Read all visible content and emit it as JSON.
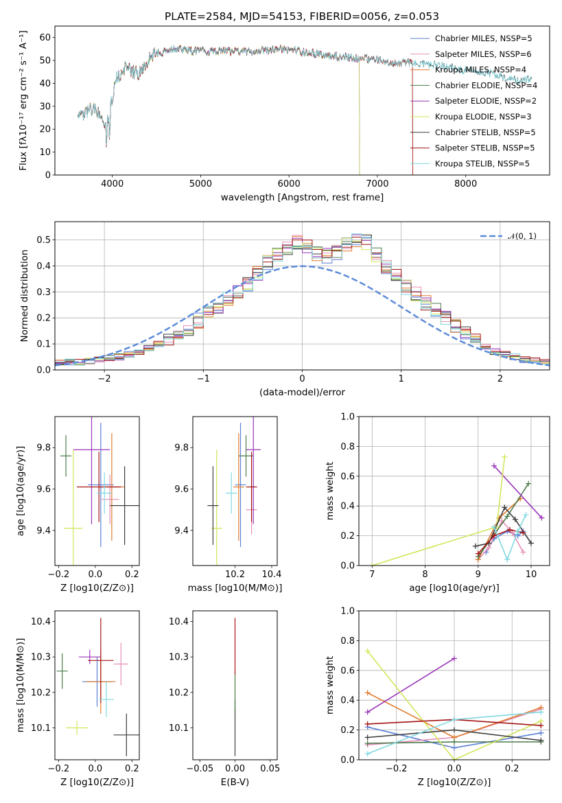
{
  "colors": {
    "Chabrier MILES": "#5b7fd4",
    "Salpeter MILES": "#e58fb5",
    "Kroupa MILES": "#e07a2d",
    "Chabrier ELODIE": "#4a7a4a",
    "Salpeter ELODIE": "#9a35b8",
    "Kroupa ELODIE": "#d2e65a",
    "Chabrier STELIB": "#3c3c3c",
    "Salpeter STELIB": "#a31212",
    "Kroupa STELIB": "#7fd8e0",
    "normal": "#5b8bd9"
  },
  "models": [
    {
      "lib": "Chabrier MILES",
      "nssp": "5"
    },
    {
      "lib": "Salpeter MILES",
      "nssp": "6"
    },
    {
      "lib": "Kroupa MILES",
      "nssp": "4"
    },
    {
      "lib": "Chabrier ELODIE",
      "nssp": "4"
    },
    {
      "lib": "Salpeter ELODIE",
      "nssp": "2"
    },
    {
      "lib": "Kroupa ELODIE",
      "nssp": "3"
    },
    {
      "lib": "Chabrier STELIB",
      "nssp": "5"
    },
    {
      "lib": "Salpeter STELIB",
      "nssp": "5"
    },
    {
      "lib": "Kroupa STELIB",
      "nssp": "5"
    }
  ],
  "chart_data": [
    {
      "type": "line",
      "title": "PLATE=2584, MJD=54153, FIBERID=0056, z=0.053",
      "xlabel": "wavelength [Angstrom, rest frame]",
      "ylabel": "Flux [fλ10⁻¹⁷ erg cm⁻² s⁻¹ A⁻¹]",
      "xlim": [
        3350,
        8950
      ],
      "ylim": [
        0,
        65
      ],
      "xticks": [
        4000,
        5000,
        6000,
        7000,
        8000
      ],
      "yticks": [
        0,
        10,
        20,
        30,
        40,
        50,
        60
      ],
      "legend": "top-right",
      "legend_labels": [
        "Chabrier MILES, NSSP=5",
        "Salpeter MILES, NSSP=6",
        "Kroupa MILES, NSSP=4",
        "Chabrier ELODIE, NSSP=4",
        "Salpeter ELODIE, NSSP=2",
        "Kroupa ELODIE, NSSP=3",
        "Chabrier STELIB, NSSP=5",
        "Salpeter STELIB, NSSP=5",
        "Kroupa STELIB, NSSP=5"
      ],
      "continuum": [
        [
          3600,
          28
        ],
        [
          3700,
          27
        ],
        [
          3800,
          30
        ],
        [
          3900,
          22
        ],
        [
          3950,
          25
        ],
        [
          4000,
          33
        ],
        [
          4050,
          42
        ],
        [
          4150,
          47
        ],
        [
          4300,
          44
        ],
        [
          4400,
          50
        ],
        [
          4500,
          53
        ],
        [
          4700,
          55
        ],
        [
          5000,
          54
        ],
        [
          5300,
          54
        ],
        [
          5600,
          54
        ],
        [
          5900,
          55
        ],
        [
          6100,
          54
        ],
        [
          6300,
          53
        ],
        [
          6500,
          52
        ],
        [
          6800,
          51
        ],
        [
          7000,
          50
        ],
        [
          7200,
          49
        ],
        [
          7400,
          49
        ],
        [
          7600,
          48
        ],
        [
          7800,
          47
        ],
        [
          8000,
          46
        ],
        [
          8200,
          45
        ],
        [
          8400,
          43
        ],
        [
          8600,
          41
        ],
        [
          8750,
          42
        ]
      ],
      "range_end": {
        "Chabrier MILES": 7400,
        "Salpeter MILES": 7400,
        "Kroupa MILES": 7400,
        "Chabrier ELODIE": 6800,
        "Salpeter ELODIE": 6800,
        "Kroupa ELODIE": 6800,
        "Chabrier STELIB": 8750,
        "Salpeter STELIB": 7400,
        "Kroupa STELIB": 8750
      }
    },
    {
      "type": "histogram",
      "xlabel": "(data-model)/error",
      "ylabel": "Normed distribution",
      "xlim": [
        -2.5,
        2.5
      ],
      "ylim": [
        0,
        0.57
      ],
      "xticks": [
        -2,
        -1,
        0,
        1,
        2
      ],
      "yticks": [
        0.0,
        0.1,
        0.2,
        0.3,
        0.4,
        0.5
      ],
      "grid": true,
      "legend": "top-right",
      "normal_label": "𝒩(0, 1)",
      "bin_width": 0.1,
      "bin_start": -2.5,
      "reference_values": [
        0.03,
        0.03,
        0.03,
        0.035,
        0.04,
        0.045,
        0.05,
        0.06,
        0.07,
        0.085,
        0.1,
        0.11,
        0.13,
        0.16,
        0.19,
        0.22,
        0.24,
        0.27,
        0.3,
        0.33,
        0.37,
        0.41,
        0.44,
        0.47,
        0.49,
        0.47,
        0.45,
        0.44,
        0.45,
        0.48,
        0.5,
        0.49,
        0.44,
        0.4,
        0.37,
        0.32,
        0.29,
        0.26,
        0.23,
        0.2,
        0.17,
        0.14,
        0.11,
        0.09,
        0.07,
        0.06,
        0.05,
        0.04,
        0.035,
        0.03
      ]
    },
    {
      "type": "scatter",
      "panel": "Z vs age",
      "xlabel": "Z [log10(Z/Z⊙)]",
      "ylabel": "age  [log10(age/yr)]",
      "xlim": [
        -0.22,
        0.24
      ],
      "ylim": [
        9.23,
        9.95
      ],
      "xticks": [
        -0.2,
        0.0,
        0.2
      ],
      "yticks": [
        9.4,
        9.6,
        9.8
      ],
      "points": [
        {
          "model": "Chabrier MILES",
          "x": 0.03,
          "y": 9.62,
          "xerr": 0.07,
          "yerr": 0.3
        },
        {
          "model": "Salpeter MILES",
          "x": 0.08,
          "y": 9.55,
          "xerr": 0.05,
          "yerr": 0.12
        },
        {
          "model": "Kroupa MILES",
          "x": 0.09,
          "y": 9.61,
          "xerr": 0.07,
          "yerr": 0.26
        },
        {
          "model": "Chabrier ELODIE",
          "x": -0.16,
          "y": 9.76,
          "xerr": 0.03,
          "yerr": 0.1
        },
        {
          "model": "Salpeter ELODIE",
          "x": -0.02,
          "y": 9.79,
          "xerr": 0.1,
          "yerr": 0.36
        },
        {
          "model": "Kroupa ELODIE",
          "x": -0.12,
          "y": 9.41,
          "xerr": 0.05,
          "yerr": 0.38
        },
        {
          "model": "Chabrier STELIB",
          "x": 0.16,
          "y": 9.52,
          "xerr": 0.08,
          "yerr": 0.19
        },
        {
          "model": "Salpeter STELIB",
          "x": 0.02,
          "y": 9.61,
          "xerr": 0.12,
          "yerr": 0.17
        },
        {
          "model": "Kroupa STELIB",
          "x": 0.05,
          "y": 9.58,
          "xerr": 0.04,
          "yerr": 0.1
        }
      ]
    },
    {
      "type": "scatter",
      "panel": "mass vs age",
      "xlabel": "mass [log10(M/M⊙)]",
      "ylabel": "",
      "xlim": [
        9.97,
        10.43
      ],
      "ylim": [
        9.23,
        9.95
      ],
      "xticks": [
        10.2,
        10.4
      ],
      "yticks": [
        9.4,
        9.6,
        9.8
      ],
      "points": [
        {
          "model": "Chabrier MILES",
          "x": 10.23,
          "y": 9.62,
          "xerr": 0.03,
          "yerr": 0.3
        },
        {
          "model": "Salpeter MILES",
          "x": 10.29,
          "y": 9.5,
          "xerr": 0.03,
          "yerr": 0.12
        },
        {
          "model": "Kroupa MILES",
          "x": 10.22,
          "y": 9.61,
          "xerr": 0.03,
          "yerr": 0.26
        },
        {
          "model": "Chabrier ELODIE",
          "x": 10.26,
          "y": 9.76,
          "xerr": 0.04,
          "yerr": 0.1
        },
        {
          "model": "Salpeter ELODIE",
          "x": 10.3,
          "y": 9.79,
          "xerr": 0.04,
          "yerr": 0.36
        },
        {
          "model": "Kroupa ELODIE",
          "x": 10.1,
          "y": 9.41,
          "xerr": 0.03,
          "yerr": 0.38
        },
        {
          "model": "Chabrier STELIB",
          "x": 10.08,
          "y": 9.52,
          "xerr": 0.03,
          "yerr": 0.19
        },
        {
          "model": "Salpeter STELIB",
          "x": 10.29,
          "y": 9.61,
          "xerr": 0.03,
          "yerr": 0.17
        },
        {
          "model": "Kroupa STELIB",
          "x": 10.18,
          "y": 9.58,
          "xerr": 0.03,
          "yerr": 0.1
        }
      ]
    },
    {
      "type": "line",
      "panel": "age vs mass weight",
      "xlabel": "age  [log10(age/yr)]",
      "ylabel": "mass weight",
      "xlim": [
        6.75,
        10.35
      ],
      "ylim": [
        0,
        1
      ],
      "xticks": [
        7,
        8,
        9,
        10
      ],
      "yticks": [
        0.0,
        0.2,
        0.4,
        0.6,
        0.8,
        1.0
      ],
      "grid": true,
      "series": [
        {
          "model": "Chabrier MILES",
          "points": [
            [
              9.15,
              0.09
            ],
            [
              9.3,
              0.18
            ],
            [
              9.55,
              0.23
            ],
            [
              9.75,
              0.2
            ],
            [
              9.85,
              0.23
            ]
          ]
        },
        {
          "model": "Salpeter MILES",
          "points": [
            [
              9.0,
              0.04
            ],
            [
              9.2,
              0.12
            ],
            [
              9.45,
              0.3
            ],
            [
              9.65,
              0.22
            ],
            [
              9.85,
              0.09
            ]
          ]
        },
        {
          "model": "Kroupa MILES",
          "points": [
            [
              9.0,
              0.04
            ],
            [
              9.4,
              0.32
            ],
            [
              9.8,
              0.45
            ]
          ]
        },
        {
          "model": "Chabrier ELODIE",
          "points": [
            [
              9.0,
              0.06
            ],
            [
              9.55,
              0.33
            ],
            [
              9.95,
              0.55
            ]
          ]
        },
        {
          "model": "Salpeter ELODIE",
          "points": [
            [
              9.3,
              0.67
            ],
            [
              10.2,
              0.32
            ]
          ]
        },
        {
          "model": "Kroupa ELODIE",
          "points": [
            [
              7.0,
              0.0
            ],
            [
              9.35,
              0.26
            ],
            [
              9.5,
              0.73
            ]
          ]
        },
        {
          "model": "Chabrier STELIB",
          "points": [
            [
              8.95,
              0.13
            ],
            [
              9.2,
              0.15
            ],
            [
              9.5,
              0.39
            ],
            [
              9.7,
              0.31
            ],
            [
              10.0,
              0.15
            ]
          ]
        },
        {
          "model": "Salpeter STELIB",
          "points": [
            [
              9.0,
              0.08
            ],
            [
              9.3,
              0.2
            ],
            [
              9.6,
              0.24
            ],
            [
              9.85,
              0.22
            ]
          ]
        },
        {
          "model": "Kroupa STELIB",
          "points": [
            [
              9.3,
              0.26
            ],
            [
              9.55,
              0.04
            ],
            [
              9.75,
              0.23
            ],
            [
              9.9,
              0.34
            ]
          ]
        }
      ]
    },
    {
      "type": "scatter",
      "panel": "Z vs mass",
      "xlabel": "Z [log10(Z/Z⊙)]",
      "ylabel": "mass [log10(M/M⊙)]",
      "xlim": [
        -0.22,
        0.24
      ],
      "ylim": [
        10.01,
        10.43
      ],
      "xticks": [
        -0.2,
        0.0,
        0.2
      ],
      "yticks": [
        10.1,
        10.2,
        10.3,
        10.4
      ],
      "points": [
        {
          "model": "Chabrier MILES",
          "x": 0.01,
          "y": 10.23,
          "xerr": 0.08,
          "yerr": 0.07
        },
        {
          "model": "Salpeter MILES",
          "x": 0.14,
          "y": 10.28,
          "xerr": 0.04,
          "yerr": 0.06
        },
        {
          "model": "Kroupa MILES",
          "x": 0.03,
          "y": 10.23,
          "xerr": 0.08,
          "yerr": 0.09
        },
        {
          "model": "Chabrier ELODIE",
          "x": -0.18,
          "y": 10.26,
          "xerr": 0.03,
          "yerr": 0.05
        },
        {
          "model": "Salpeter ELODIE",
          "x": -0.03,
          "y": 10.3,
          "xerr": 0.06,
          "yerr": 0.02
        },
        {
          "model": "Kroupa ELODIE",
          "x": -0.1,
          "y": 10.1,
          "xerr": 0.06,
          "yerr": 0.02
        },
        {
          "model": "Chabrier STELIB",
          "x": 0.17,
          "y": 10.08,
          "xerr": 0.07,
          "yerr": 0.06
        },
        {
          "model": "Salpeter STELIB",
          "x": 0.03,
          "y": 10.29,
          "xerr": 0.07,
          "yerr": 0.12
        },
        {
          "model": "Kroupa STELIB",
          "x": 0.06,
          "y": 10.18,
          "xerr": 0.04,
          "yerr": 0.05
        }
      ]
    },
    {
      "type": "scatter",
      "panel": "E(B-V) vs mass",
      "xlabel": "E(B-V)",
      "ylabel": "",
      "xlim": [
        -0.06,
        0.06
      ],
      "ylim": [
        10.01,
        10.43
      ],
      "xticks": [
        -0.05,
        0.0,
        0.05
      ],
      "yticks": [
        10.1,
        10.2,
        10.3,
        10.4
      ],
      "points": [
        {
          "model": "Kroupa ELODIE",
          "x": 0.0,
          "y": 10.2,
          "xerr": 0.0,
          "yerr": 0.07
        },
        {
          "model": "Chabrier STELIB",
          "x": 0.0,
          "y": 10.1,
          "xerr": 0.0,
          "yerr": 0.08
        },
        {
          "model": "Salpeter STELIB",
          "x": 0.0,
          "y": 10.33,
          "xerr": 0.0,
          "yerr": 0.08
        },
        {
          "model": "Chabrier ELODIE",
          "x": 0.0,
          "y": 10.2,
          "xerr": 0.0,
          "yerr": 0.05
        }
      ]
    },
    {
      "type": "line",
      "panel": "Z vs mass weight",
      "xlabel": "Z [log10(Z/Z⊙)]",
      "ylabel": "mass weight",
      "xlim": [
        -0.33,
        0.33
      ],
      "ylim": [
        0,
        1
      ],
      "xticks": [
        -0.2,
        0.0,
        0.2
      ],
      "yticks": [
        0.0,
        0.2,
        0.4,
        0.6,
        0.8,
        1.0
      ],
      "grid": true,
      "series": [
        {
          "model": "Chabrier MILES",
          "points": [
            [
              -0.3,
              0.22
            ],
            [
              0.0,
              0.08
            ],
            [
              0.3,
              0.18
            ]
          ]
        },
        {
          "model": "Salpeter MILES",
          "points": [
            [
              -0.3,
              0.1
            ],
            [
              0.0,
              0.15
            ],
            [
              0.3,
              0.34
            ]
          ]
        },
        {
          "model": "Kroupa MILES",
          "points": [
            [
              -0.3,
              0.45
            ],
            [
              0.0,
              0.15
            ],
            [
              0.3,
              0.35
            ]
          ]
        },
        {
          "model": "Chabrier ELODIE",
          "points": [
            [
              -0.3,
              0.11
            ],
            [
              0.0,
              0.12
            ],
            [
              0.3,
              0.12
            ]
          ]
        },
        {
          "model": "Salpeter ELODIE",
          "points": [
            [
              -0.3,
              0.32
            ],
            [
              0.0,
              0.68
            ]
          ]
        },
        {
          "model": "Kroupa ELODIE",
          "points": [
            [
              -0.3,
              0.73
            ],
            [
              0.0,
              0.0
            ],
            [
              0.3,
              0.26
            ]
          ]
        },
        {
          "model": "Chabrier STELIB",
          "points": [
            [
              -0.3,
              0.15
            ],
            [
              0.0,
              0.2
            ],
            [
              0.3,
              0.13
            ]
          ]
        },
        {
          "model": "Salpeter STELIB",
          "points": [
            [
              -0.3,
              0.24
            ],
            [
              0.0,
              0.27
            ],
            [
              0.3,
              0.23
            ]
          ]
        },
        {
          "model": "Kroupa STELIB",
          "points": [
            [
              -0.3,
              0.04
            ],
            [
              0.0,
              0.27
            ],
            [
              0.3,
              0.32
            ]
          ]
        }
      ]
    }
  ]
}
